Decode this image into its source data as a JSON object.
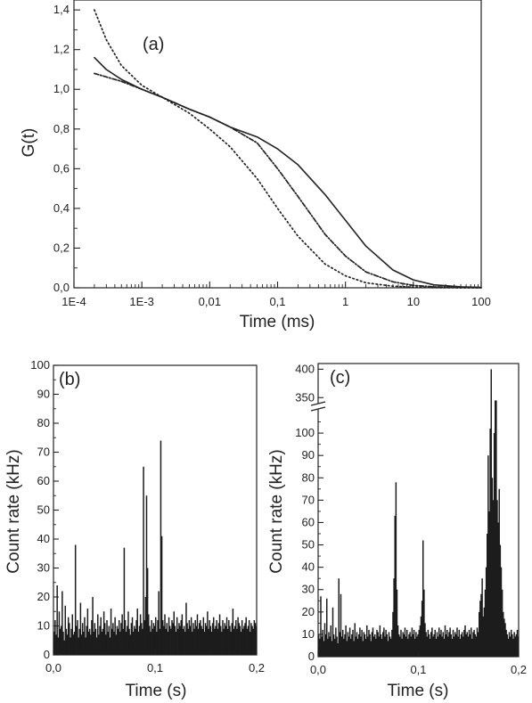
{
  "chart_data": [
    {
      "panel": "a",
      "type": "line",
      "panel_label": "(a)",
      "xlabel": "Time (ms)",
      "ylabel": "G(t)",
      "xscale": "log",
      "xlim": [
        0.0001,
        100
      ],
      "ylim": [
        0.0,
        1.45
      ],
      "x_ticks": [
        {
          "value": 0.0001,
          "label": "1E-4"
        },
        {
          "value": 0.001,
          "label": "1E-3"
        },
        {
          "value": 0.01,
          "label": "0,01"
        },
        {
          "value": 0.1,
          "label": "0,1"
        },
        {
          "value": 1,
          "label": "1"
        },
        {
          "value": 10,
          "label": "10"
        },
        {
          "value": 100,
          "label": "100"
        }
      ],
      "y_ticks": [
        {
          "value": 0.0,
          "label": "0,0"
        },
        {
          "value": 0.2,
          "label": "0,2"
        },
        {
          "value": 0.4,
          "label": "0,4"
        },
        {
          "value": 0.6,
          "label": "0,6"
        },
        {
          "value": 0.8,
          "label": "0,8"
        },
        {
          "value": 1.0,
          "label": "1,0"
        },
        {
          "value": 1.2,
          "label": "1,2"
        },
        {
          "value": 1.4,
          "label": "1,4"
        }
      ],
      "grid": false,
      "series": [
        {
          "style": "solid",
          "x": [
            0.0002,
            0.0003,
            0.0005,
            0.001,
            0.002,
            0.005,
            0.01,
            0.02,
            0.05,
            0.1,
            0.2,
            0.5,
            1,
            2,
            5,
            10,
            20,
            50,
            100
          ],
          "y": [
            1.16,
            1.1,
            1.05,
            1.0,
            0.96,
            0.9,
            0.86,
            0.81,
            0.76,
            0.7,
            0.62,
            0.47,
            0.34,
            0.21,
            0.09,
            0.04,
            0.015,
            0.005,
            0.002
          ]
        },
        {
          "style": "dash-dot",
          "x": [
            0.0002,
            0.0005,
            0.001,
            0.002,
            0.005,
            0.01,
            0.02,
            0.05,
            0.1,
            0.2,
            0.5,
            1,
            2,
            5,
            10,
            20,
            50,
            100
          ],
          "y": [
            1.08,
            1.04,
            1.0,
            0.96,
            0.9,
            0.86,
            0.81,
            0.73,
            0.6,
            0.46,
            0.27,
            0.16,
            0.08,
            0.03,
            0.012,
            0.005,
            0.002,
            0.001
          ]
        },
        {
          "style": "dotted",
          "x": [
            0.0002,
            0.0003,
            0.0005,
            0.001,
            0.002,
            0.005,
            0.01,
            0.02,
            0.05,
            0.1,
            0.2,
            0.5,
            1,
            2,
            5,
            10,
            20,
            50,
            100
          ],
          "y": [
            1.4,
            1.25,
            1.12,
            1.02,
            0.96,
            0.88,
            0.8,
            0.71,
            0.55,
            0.4,
            0.26,
            0.12,
            0.06,
            0.025,
            0.008,
            0.003,
            0.001,
            0.0,
            0.0
          ]
        }
      ]
    },
    {
      "panel": "b",
      "type": "bar",
      "panel_label": "(b)",
      "xlabel": "Time (s)",
      "ylabel": "Count rate (kHz)",
      "xlim": [
        0.0,
        0.2
      ],
      "ylim": [
        0,
        100
      ],
      "x_ticks": [
        {
          "value": 0.0,
          "label": "0,0"
        },
        {
          "value": 0.1,
          "label": "0,1"
        },
        {
          "value": 0.2,
          "label": "0,2"
        }
      ],
      "y_ticks": [
        {
          "value": 0,
          "label": "0"
        },
        {
          "value": 10,
          "label": "10"
        },
        {
          "value": 20,
          "label": "20"
        },
        {
          "value": 30,
          "label": "30"
        },
        {
          "value": 40,
          "label": "40"
        },
        {
          "value": 50,
          "label": "50"
        },
        {
          "value": 60,
          "label": "60"
        },
        {
          "value": 70,
          "label": "70"
        },
        {
          "value": 80,
          "label": "80"
        },
        {
          "value": 90,
          "label": "90"
        },
        {
          "value": 100,
          "label": "100"
        }
      ],
      "grid": false,
      "bin_width": 0.001,
      "values": [
        8,
        12,
        7,
        24,
        6,
        15,
        9,
        10,
        22,
        8,
        5,
        17,
        9,
        7,
        13,
        11,
        6,
        9,
        14,
        7,
        8,
        38,
        10,
        12,
        6,
        9,
        18,
        7,
        11,
        8,
        13,
        6,
        10,
        16,
        8,
        9,
        7,
        12,
        20,
        8,
        11,
        9,
        6,
        14,
        7,
        10,
        13,
        8,
        9,
        15,
        11,
        7,
        12,
        8,
        10,
        6,
        16,
        9,
        11,
        8,
        13,
        7,
        10,
        9,
        12,
        8,
        11,
        14,
        9,
        37,
        12,
        8,
        10,
        15,
        9,
        7,
        11,
        13,
        8,
        10,
        9,
        12,
        16,
        8,
        10,
        14,
        11,
        9,
        65,
        12,
        20,
        55,
        30,
        14,
        10,
        8,
        12,
        9,
        11,
        10,
        13,
        8,
        12,
        22,
        9,
        74,
        41,
        12,
        10,
        14,
        9,
        11,
        8,
        13,
        10,
        9,
        12,
        11,
        15,
        10,
        8,
        13,
        9,
        11,
        10,
        12,
        14,
        9,
        10,
        8,
        18,
        11,
        9,
        12,
        10,
        13,
        8,
        11,
        9,
        12,
        10,
        14,
        9,
        11,
        12,
        10,
        9,
        13,
        8,
        11,
        10,
        15,
        9,
        12,
        10,
        8,
        11,
        13,
        9,
        10,
        12,
        9,
        11,
        14,
        10,
        8,
        12,
        9,
        11,
        10,
        13,
        9,
        12,
        10,
        8,
        11,
        16,
        9,
        10,
        12,
        9,
        13,
        11,
        10,
        8,
        12,
        9,
        10,
        11,
        13,
        9,
        10,
        12,
        8,
        11,
        10,
        9,
        12,
        11,
        10
      ]
    },
    {
      "panel": "c",
      "type": "bar",
      "panel_label": "(c)",
      "xlabel": "Time (s)",
      "ylabel": "Count rate (kHz)",
      "xlim": [
        0.0,
        0.2
      ],
      "ylim": [
        0,
        110
      ],
      "y_break": {
        "lower_max": 110,
        "upper_range": [
          330,
          410
        ]
      },
      "x_ticks": [
        {
          "value": 0.0,
          "label": "0,0"
        },
        {
          "value": 0.1,
          "label": "0,1"
        },
        {
          "value": 0.2,
          "label": "0,2"
        }
      ],
      "y_ticks": [
        {
          "value": 0,
          "label": "0"
        },
        {
          "value": 10,
          "label": "10"
        },
        {
          "value": 20,
          "label": "20"
        },
        {
          "value": 30,
          "label": "30"
        },
        {
          "value": 40,
          "label": "40"
        },
        {
          "value": 50,
          "label": "50"
        },
        {
          "value": 60,
          "label": "60"
        },
        {
          "value": 70,
          "label": "70"
        },
        {
          "value": 80,
          "label": "80"
        },
        {
          "value": 90,
          "label": "90"
        },
        {
          "value": 100,
          "label": "100"
        },
        {
          "value": 350,
          "label": "350"
        },
        {
          "value": 400,
          "label": "400"
        }
      ],
      "grid": false,
      "bin_width": 0.001,
      "values": [
        10,
        8,
        27,
        9,
        12,
        7,
        15,
        10,
        26,
        8,
        11,
        9,
        14,
        7,
        22,
        10,
        8,
        13,
        9,
        6,
        35,
        11,
        28,
        9,
        12,
        8,
        10,
        14,
        7,
        11,
        9,
        13,
        8,
        10,
        12,
        7,
        15,
        9,
        11,
        8,
        10,
        13,
        9,
        12,
        7,
        11,
        10,
        8,
        14,
        9,
        12,
        10,
        7,
        11,
        13,
        9,
        10,
        8,
        12,
        11,
        9,
        14,
        10,
        8,
        11,
        13,
        9,
        12,
        10,
        7,
        11,
        9,
        8,
        12,
        20,
        35,
        63,
        78,
        30,
        14,
        10,
        9,
        12,
        8,
        11,
        10,
        13,
        9,
        12,
        8,
        10,
        11,
        9,
        13,
        10,
        12,
        8,
        11,
        9,
        10,
        12,
        14,
        18,
        25,
        52,
        30,
        15,
        11,
        9,
        12,
        10,
        8,
        11,
        13,
        9,
        10,
        12,
        8,
        11,
        9,
        13,
        10,
        12,
        9,
        11,
        8,
        14,
        10,
        12,
        9,
        11,
        13,
        10,
        8,
        12,
        9,
        11,
        10,
        13,
        9,
        12,
        8,
        10,
        11,
        9,
        12,
        14,
        10,
        11,
        9,
        12,
        10,
        13,
        8,
        11,
        12,
        10,
        9,
        13,
        11,
        20,
        25,
        28,
        35,
        18,
        22,
        30,
        40,
        55,
        90,
        65,
        102,
        400,
        80,
        70,
        100,
        345,
        345,
        70,
        60,
        75,
        50,
        40,
        30,
        20,
        17,
        15,
        12,
        10,
        8,
        11,
        9,
        12,
        10,
        8,
        11,
        9,
        10,
        12,
        9
      ]
    }
  ]
}
